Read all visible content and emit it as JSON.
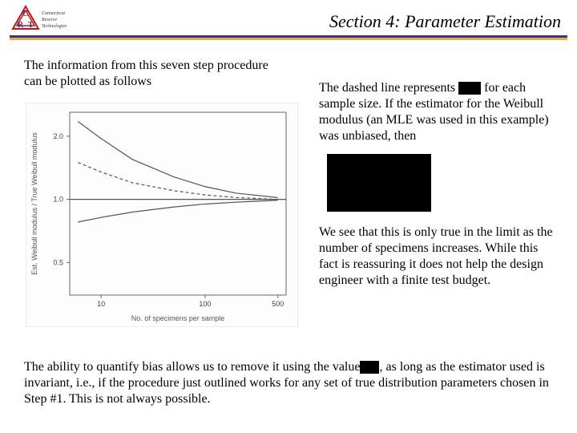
{
  "header": {
    "title": "Section 4: Parameter Estimation",
    "logo": {
      "name": "Connecticut Reserve Technologies",
      "letters": [
        "C",
        "R",
        "T"
      ],
      "triangle_stroke": "#c01818",
      "letter_fill": "#2a3a8a"
    },
    "rule_colors": {
      "top": "#333399",
      "bottom": "#e6b327"
    }
  },
  "left": {
    "intro": "The information from this seven step procedure can be plotted as follows"
  },
  "chart": {
    "type": "line",
    "scale": "log-log",
    "x_label": "No. of specimens per sample",
    "y_label": "Est. Weibull modulus / True Weibull modulus",
    "x_ticks": [
      10,
      100,
      500
    ],
    "y_ticks": [
      0.5,
      1.0,
      2.0
    ],
    "xlim": [
      5,
      600
    ],
    "ylim": [
      0.35,
      2.6
    ],
    "line_color": "#555555",
    "grid_color": "#dddddd",
    "background": "#fdfdfd",
    "axis_fontsize": 9,
    "label_fontsize": 9,
    "series": {
      "upper": {
        "x": [
          6,
          10,
          20,
          50,
          100,
          200,
          500
        ],
        "y": [
          2.35,
          1.95,
          1.55,
          1.28,
          1.15,
          1.07,
          1.02
        ],
        "dash": "none"
      },
      "mean": {
        "x": [
          6,
          10,
          20,
          50,
          100,
          200,
          500
        ],
        "y": [
          1.5,
          1.35,
          1.2,
          1.1,
          1.05,
          1.02,
          1.0
        ],
        "dash": "4,3"
      },
      "unity": {
        "x": [
          5,
          600
        ],
        "y": [
          1.0,
          1.0
        ],
        "dash": "none"
      },
      "lower": {
        "x": [
          6,
          10,
          20,
          50,
          100,
          200,
          500
        ],
        "y": [
          0.78,
          0.82,
          0.87,
          0.92,
          0.95,
          0.97,
          0.99
        ],
        "dash": "none"
      }
    }
  },
  "right": {
    "p1_a": "The dashed line represents ",
    "p1_b": " for each sample size.  If the estimator for the Weibull modulus (an MLE was used in this example) was unbiased, then",
    "p2": "We see that this is only true in the limit as the number of specimens increases.  While this fact is reassuring it does not help the design engineer with a finite test budget."
  },
  "bottom": {
    "a": "The ability to quantify bias allows us to remove it using the value",
    "b": ", as long as the estimator used is invariant, i.e., if the procedure just outlined works for any set of true distribution parameters chosen in Step #1.  This is not always possible."
  }
}
